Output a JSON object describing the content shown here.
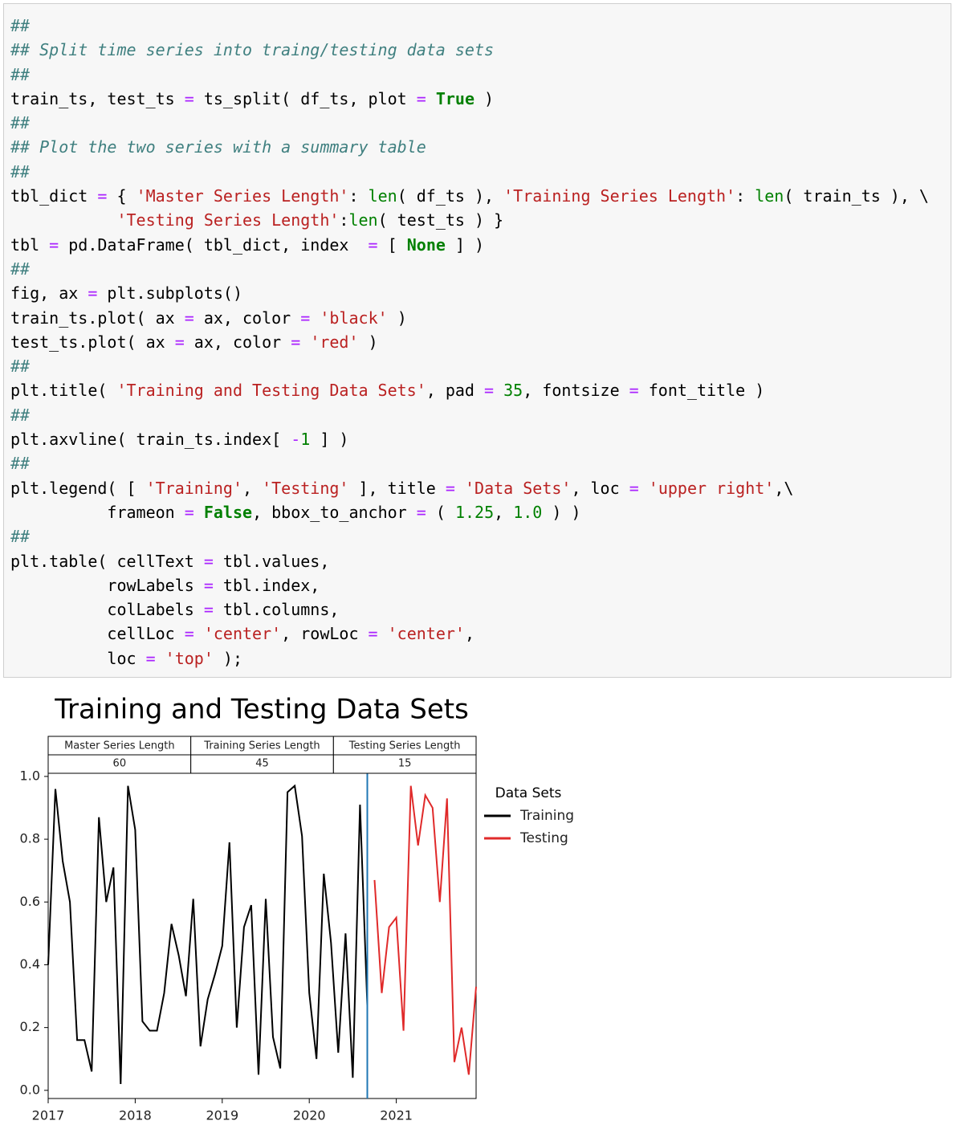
{
  "code": {
    "lines": [
      [
        {
          "text": "##",
          "color": "#408080",
          "italic": true
        }
      ],
      [
        {
          "text": "## Split time series into traing/testing data sets",
          "color": "#408080",
          "italic": true
        }
      ],
      [
        {
          "text": "##",
          "color": "#408080",
          "italic": true
        }
      ],
      [
        {
          "text": "train_ts, test_ts "
        },
        {
          "text": "= ",
          "color": "#aa22ff"
        },
        {
          "text": "ts_split( df_ts, plot "
        },
        {
          "text": "= ",
          "color": "#aa22ff"
        },
        {
          "text": "True",
          "color": "#008000",
          "bold": true
        },
        {
          "text": " )"
        }
      ],
      [
        {
          "text": "##",
          "color": "#408080",
          "italic": true
        }
      ],
      [
        {
          "text": "## Plot the two series with a summary table",
          "color": "#408080",
          "italic": true
        }
      ],
      [
        {
          "text": "##",
          "color": "#408080",
          "italic": true
        }
      ],
      [
        {
          "text": "tbl_dict "
        },
        {
          "text": "= ",
          "color": "#aa22ff"
        },
        {
          "text": "{ "
        },
        {
          "text": "'Master Series Length'",
          "color": "#ba2121"
        },
        {
          "text": ": "
        },
        {
          "text": "len",
          "color": "#008000"
        },
        {
          "text": "( df_ts ), "
        },
        {
          "text": "'Training Series Length'",
          "color": "#ba2121"
        },
        {
          "text": ": "
        },
        {
          "text": "len",
          "color": "#008000"
        },
        {
          "text": "( train_ts ), \\"
        }
      ],
      [
        {
          "text": "           "
        },
        {
          "text": "'Testing Series Length'",
          "color": "#ba2121"
        },
        {
          "text": ":"
        },
        {
          "text": "len",
          "color": "#008000"
        },
        {
          "text": "( test_ts ) }"
        }
      ],
      [
        {
          "text": "tbl "
        },
        {
          "text": "= ",
          "color": "#aa22ff"
        },
        {
          "text": "pd.DataFrame( tbl_dict, index  "
        },
        {
          "text": "= ",
          "color": "#aa22ff"
        },
        {
          "text": "[ "
        },
        {
          "text": "None",
          "color": "#008000",
          "bold": true
        },
        {
          "text": " ] )"
        }
      ],
      [
        {
          "text": "##",
          "color": "#408080",
          "italic": true
        }
      ],
      [
        {
          "text": "fig, ax "
        },
        {
          "text": "= ",
          "color": "#aa22ff"
        },
        {
          "text": "plt.subplots()"
        }
      ],
      [
        {
          "text": "train_ts.plot( ax "
        },
        {
          "text": "= ",
          "color": "#aa22ff"
        },
        {
          "text": "ax, color "
        },
        {
          "text": "= ",
          "color": "#aa22ff"
        },
        {
          "text": "'black'",
          "color": "#ba2121"
        },
        {
          "text": " )"
        }
      ],
      [
        {
          "text": "test_ts.plot( ax "
        },
        {
          "text": "= ",
          "color": "#aa22ff"
        },
        {
          "text": "ax, color "
        },
        {
          "text": "= ",
          "color": "#aa22ff"
        },
        {
          "text": "'red'",
          "color": "#ba2121"
        },
        {
          "text": " )"
        }
      ],
      [
        {
          "text": "##",
          "color": "#408080",
          "italic": true
        }
      ],
      [
        {
          "text": "plt.title( "
        },
        {
          "text": "'Training and Testing Data Sets'",
          "color": "#ba2121"
        },
        {
          "text": ", pad "
        },
        {
          "text": "= ",
          "color": "#aa22ff"
        },
        {
          "text": "35",
          "color": "#008000"
        },
        {
          "text": ", fontsize "
        },
        {
          "text": "= ",
          "color": "#aa22ff"
        },
        {
          "text": "font_title )"
        }
      ],
      [
        {
          "text": "##",
          "color": "#408080",
          "italic": true
        }
      ],
      [
        {
          "text": "plt.axvline( train_ts.index[ "
        },
        {
          "text": "-",
          "color": "#aa22ff"
        },
        {
          "text": "1",
          "color": "#008000"
        },
        {
          "text": " ] )"
        }
      ],
      [
        {
          "text": "##",
          "color": "#408080",
          "italic": true
        }
      ],
      [
        {
          "text": "plt.legend( [ "
        },
        {
          "text": "'Training'",
          "color": "#ba2121"
        },
        {
          "text": ", "
        },
        {
          "text": "'Testing'",
          "color": "#ba2121"
        },
        {
          "text": " ], title "
        },
        {
          "text": "= ",
          "color": "#aa22ff"
        },
        {
          "text": "'Data Sets'",
          "color": "#ba2121"
        },
        {
          "text": ", loc "
        },
        {
          "text": "= ",
          "color": "#aa22ff"
        },
        {
          "text": "'upper right'",
          "color": "#ba2121"
        },
        {
          "text": ",\\"
        }
      ],
      [
        {
          "text": "          frameon "
        },
        {
          "text": "= ",
          "color": "#aa22ff"
        },
        {
          "text": "False",
          "color": "#008000",
          "bold": true
        },
        {
          "text": ", bbox_to_anchor "
        },
        {
          "text": "= ",
          "color": "#aa22ff"
        },
        {
          "text": "( "
        },
        {
          "text": "1.25",
          "color": "#008000"
        },
        {
          "text": ", "
        },
        {
          "text": "1.0",
          "color": "#008000"
        },
        {
          "text": " ) )"
        }
      ],
      [
        {
          "text": "##",
          "color": "#408080",
          "italic": true
        }
      ],
      [
        {
          "text": "plt.table( cellText "
        },
        {
          "text": "= ",
          "color": "#aa22ff"
        },
        {
          "text": "tbl.values,"
        }
      ],
      [
        {
          "text": "          rowLabels "
        },
        {
          "text": "= ",
          "color": "#aa22ff"
        },
        {
          "text": "tbl.index,"
        }
      ],
      [
        {
          "text": "          colLabels "
        },
        {
          "text": "= ",
          "color": "#aa22ff"
        },
        {
          "text": "tbl.columns,"
        }
      ],
      [
        {
          "text": "          cellLoc "
        },
        {
          "text": "= ",
          "color": "#aa22ff"
        },
        {
          "text": "'center'",
          "color": "#ba2121"
        },
        {
          "text": ", rowLoc "
        },
        {
          "text": "= ",
          "color": "#aa22ff"
        },
        {
          "text": "'center'",
          "color": "#ba2121"
        },
        {
          "text": ","
        }
      ],
      [
        {
          "text": "          loc "
        },
        {
          "text": "= ",
          "color": "#aa22ff"
        },
        {
          "text": "'top'",
          "color": "#ba2121"
        },
        {
          "text": " );"
        }
      ]
    ]
  },
  "chart_data": {
    "type": "line",
    "title": "Training and Testing Data Sets",
    "table": {
      "columns": [
        "Master Series Length",
        "Training Series Length",
        "Testing Series Length"
      ],
      "values": [
        60,
        45,
        15
      ]
    },
    "legend_title": "Data Sets",
    "series": [
      {
        "name": "Training",
        "color": "#000000",
        "x": [
          2017,
          2017.083,
          2017.167,
          2017.25,
          2017.333,
          2017.417,
          2017.5,
          2017.583,
          2017.667,
          2017.75,
          2017.833,
          2017.917,
          2018,
          2018.083,
          2018.167,
          2018.25,
          2018.333,
          2018.417,
          2018.5,
          2018.583,
          2018.667,
          2018.75,
          2018.833,
          2018.917,
          2019,
          2019.083,
          2019.167,
          2019.25,
          2019.333,
          2019.417,
          2019.5,
          2019.583,
          2019.667,
          2019.75,
          2019.833,
          2019.917,
          2020,
          2020.083,
          2020.167,
          2020.25,
          2020.333,
          2020.417,
          2020.5,
          2020.583,
          2020.667
        ],
        "values": [
          0.4,
          0.96,
          0.73,
          0.6,
          0.16,
          0.16,
          0.06,
          0.87,
          0.6,
          0.71,
          0.02,
          0.97,
          0.83,
          0.22,
          0.19,
          0.19,
          0.31,
          0.53,
          0.43,
          0.3,
          0.61,
          0.14,
          0.29,
          0.37,
          0.46,
          0.79,
          0.2,
          0.52,
          0.59,
          0.05,
          0.61,
          0.17,
          0.07,
          0.95,
          0.97,
          0.81,
          0.31,
          0.1,
          0.69,
          0.47,
          0.12,
          0.5,
          0.04,
          0.91,
          0.27
        ]
      },
      {
        "name": "Testing",
        "color": "#e02a2a",
        "x": [
          2020.75,
          2020.833,
          2020.917,
          2021,
          2021.083,
          2021.167,
          2021.25,
          2021.333,
          2021.417,
          2021.5,
          2021.583,
          2021.667,
          2021.75,
          2021.833,
          2021.917
        ],
        "values": [
          0.67,
          0.31,
          0.52,
          0.55,
          0.19,
          0.97,
          0.78,
          0.94,
          0.9,
          0.6,
          0.93,
          0.09,
          0.2,
          0.05,
          0.33
        ]
      }
    ],
    "vline": 2020.667,
    "vline_color": "#1f77b4",
    "xlim": [
      2017,
      2021.917
    ],
    "xticks": [
      2017,
      2018,
      2019,
      2020,
      2021
    ],
    "ylim": [
      -0.026,
      1.01
    ],
    "yticks": [
      {
        "value": 0,
        "label": "0.0"
      },
      0.2,
      0.4,
      0.6,
      0.8,
      {
        "value": 1,
        "label": "1.0"
      }
    ]
  }
}
